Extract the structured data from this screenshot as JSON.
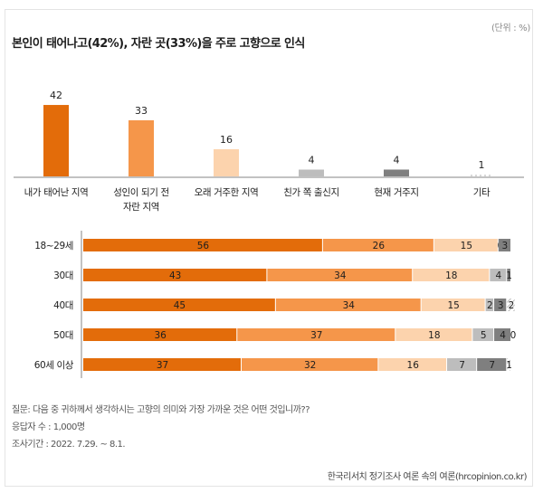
{
  "header": {
    "unit": "(단위 : %)",
    "title": "본인이 태어나고(42%), 자란 곳(33%)을 주로 고향으로 인식"
  },
  "chart_data": [
    {
      "type": "bar",
      "title": "본인이 태어나고(42%), 자란 곳(33%)을 주로 고향으로 인식",
      "xlabel": "",
      "ylabel": "",
      "unit": "%",
      "grid": false,
      "categories": [
        [
          "내가 태어난 지역"
        ],
        [
          "성인이 되기 전",
          "자란 지역"
        ],
        [
          "오래 거주한 지역"
        ],
        [
          "친가 쪽 출신지"
        ],
        [
          "현재 거주지"
        ],
        [
          "기타"
        ]
      ],
      "values": [
        42,
        33,
        16,
        4,
        4,
        1
      ],
      "colors": [
        "#e36c0a",
        "#f5964a",
        "#fcd3ad",
        "#bdbdbd",
        "#7f7f7f",
        "#d8d8d8"
      ],
      "ylim": [
        0,
        45
      ]
    },
    {
      "type": "bar",
      "orientation": "horizontal",
      "stacked": true,
      "categories": [
        "18~29세",
        "30대",
        "40대",
        "50대",
        "60세 이상"
      ],
      "series": [
        {
          "name": "내가 태어난 지역",
          "color": "#e36c0a",
          "values": [
            56,
            43,
            45,
            36,
            37
          ]
        },
        {
          "name": "성인이 되기 전 자란 지역",
          "color": "#f5964a",
          "values": [
            26,
            34,
            34,
            37,
            32
          ]
        },
        {
          "name": "오래 거주한 지역",
          "color": "#fcd3ad",
          "values": [
            15,
            18,
            15,
            18,
            16
          ]
        },
        {
          "name": "친가 쪽 출신지",
          "color": "#bdbdbd",
          "values": [
            0,
            4,
            2,
            5,
            7
          ]
        },
        {
          "name": "현재 거주지",
          "color": "#7f7f7f",
          "values": [
            3,
            1,
            3,
            4,
            7
          ]
        },
        {
          "name": "기타",
          "color": "#d8d8d8",
          "values": [
            0,
            0,
            2,
            0,
            1
          ]
        }
      ],
      "labels": [
        [
          "56",
          "26",
          "15",
          "0",
          "3",
          ""
        ],
        [
          "43",
          "34",
          "18",
          "4",
          "1",
          ""
        ],
        [
          "45",
          "34",
          "15",
          "2",
          "3",
          "2"
        ],
        [
          "36",
          "37",
          "18",
          "5",
          "4",
          "0"
        ],
        [
          "37",
          "32",
          "16",
          "7",
          "7",
          "1"
        ]
      ],
      "xlim": [
        0,
        100
      ]
    }
  ],
  "footer": {
    "question": "질문: 다음 중 귀하께서 생각하시는 고향의 의미와 가장 가까운 것은 어떤 것입니까??",
    "respondents": "응답자 수 : 1,000명",
    "period": "조사기간 : 2022. 7.29. ~ 8.1.",
    "source": "한국리서치 정기조사 여론 속의 여론(hrcopinion.co.kr)"
  }
}
